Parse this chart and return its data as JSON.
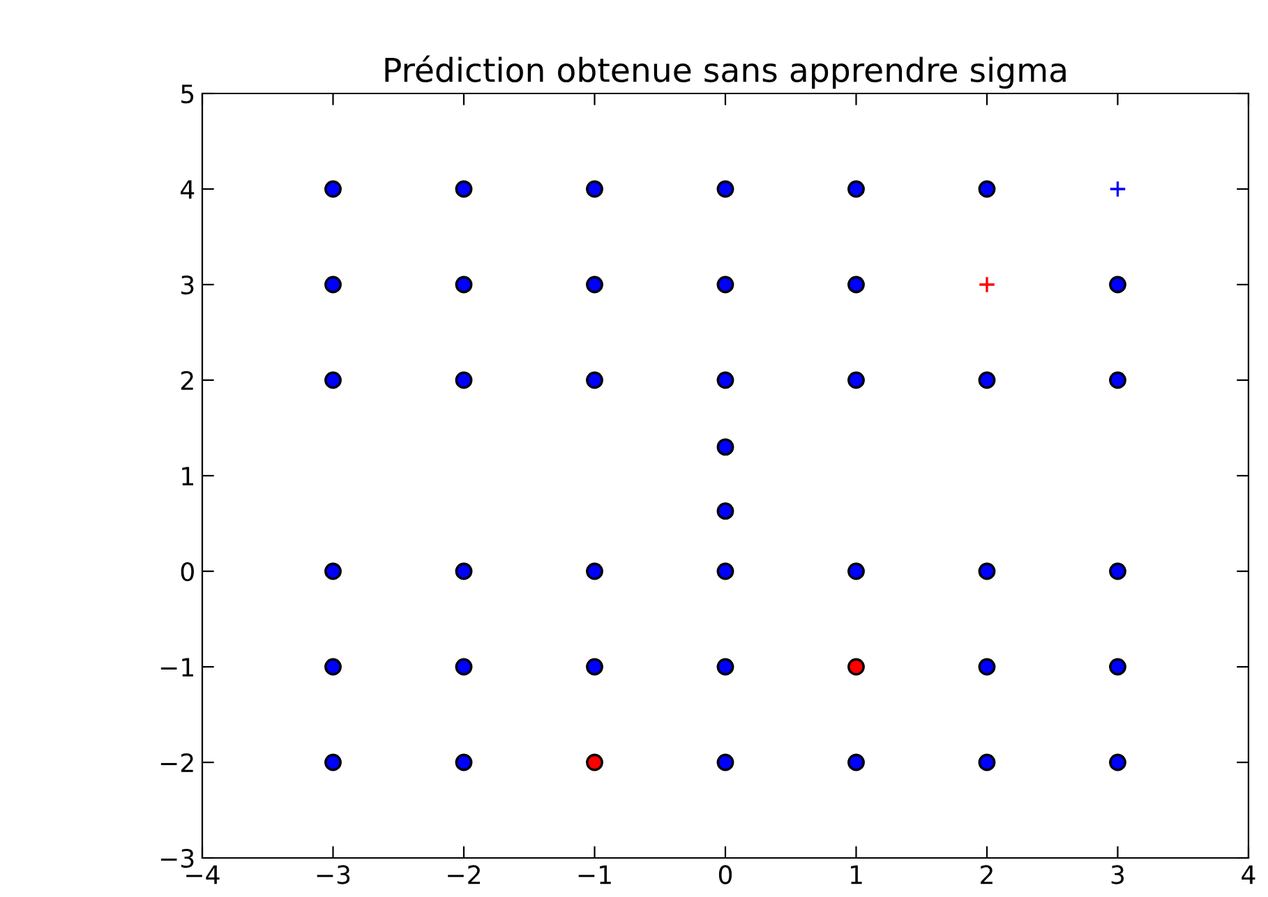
{
  "chart_data": {
    "type": "scatter",
    "title": "Prédiction obtenue sans apprendre sigma",
    "xlim": [
      -4,
      4
    ],
    "xticks": [
      -4,
      -3,
      -2,
      -1,
      0,
      1,
      2,
      3,
      4
    ],
    "ylim": [
      -3,
      5
    ],
    "yticks": [
      -3,
      -2,
      -1,
      0,
      1,
      2,
      3,
      4,
      5
    ],
    "grid": false,
    "series": [
      {
        "color": "#0000ff",
        "marker": "circle",
        "x": [
          -3,
          -2,
          -1,
          0,
          1,
          2,
          -3,
          -2,
          -1,
          0,
          1,
          3,
          -3,
          -2,
          -1,
          0,
          1,
          2,
          3,
          0,
          0,
          -3,
          -2,
          -1,
          0,
          1,
          2,
          3,
          -3,
          -2,
          -1,
          0,
          2,
          3,
          -3,
          -2,
          0,
          1,
          2,
          3
        ],
        "values": [
          4,
          4,
          4,
          4,
          4,
          4,
          3,
          3,
          3,
          3,
          3,
          3,
          2,
          2,
          2,
          2,
          2,
          2,
          2,
          1.3,
          0.63,
          0,
          0,
          0,
          0,
          0,
          0,
          0,
          -1,
          -1,
          -1,
          -1,
          -1,
          -1,
          -2,
          -2,
          -2,
          -2,
          -2,
          -2
        ]
      },
      {
        "color": "#ff0000",
        "marker": "circle",
        "x": [
          -1,
          1
        ],
        "values": [
          -2,
          -1
        ]
      },
      {
        "color": "#ff0000",
        "marker": "cross",
        "x": [
          2
        ],
        "values": [
          3
        ]
      },
      {
        "color": "#0000ff",
        "marker": "cross",
        "x": [
          3
        ],
        "values": [
          4
        ]
      }
    ]
  }
}
